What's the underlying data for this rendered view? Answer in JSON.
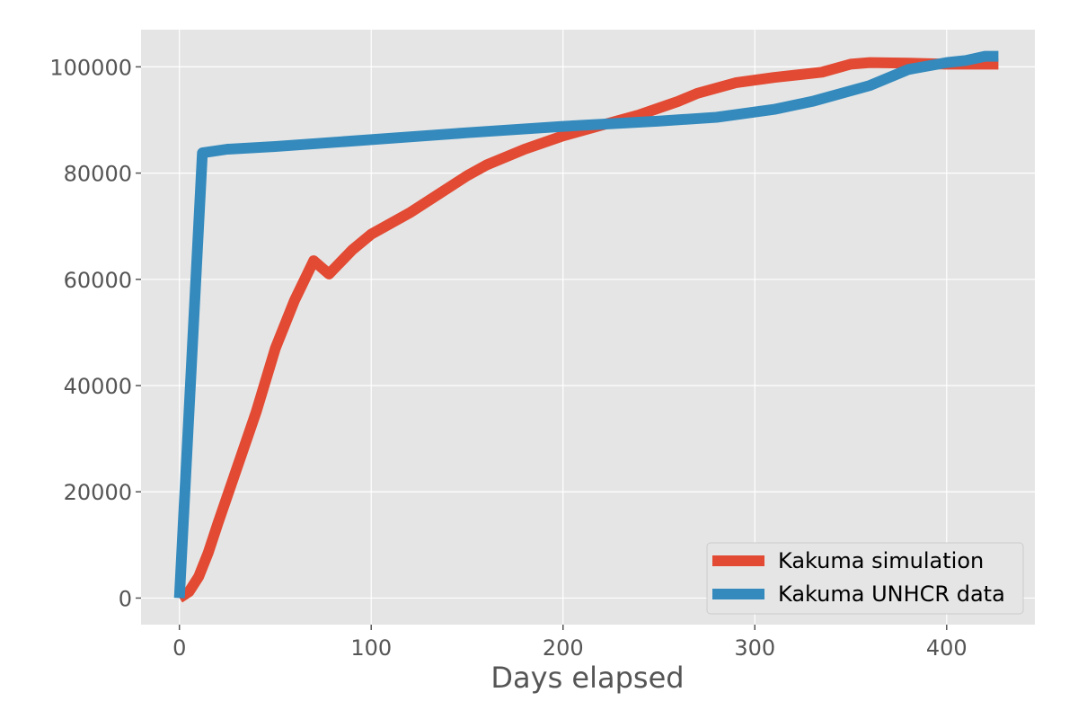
{
  "chart_data": {
    "type": "line",
    "title": "",
    "xlabel": "Days elapsed",
    "ylabel": "",
    "xlim": [
      -20,
      446
    ],
    "ylim": [
      -5000,
      107000
    ],
    "x_ticks": [
      0,
      100,
      200,
      300,
      400
    ],
    "y_ticks": [
      0,
      20000,
      40000,
      60000,
      80000,
      100000
    ],
    "x_tick_labels": [
      "0",
      "100",
      "200",
      "300",
      "400"
    ],
    "y_tick_labels": [
      "0",
      "20000",
      "40000",
      "60000",
      "80000",
      "100000"
    ],
    "grid": true,
    "legend_position": "lower-right",
    "background_color": "#e5e5e5",
    "series": [
      {
        "name": "Kakuma simulation",
        "color": "#e24a33",
        "x": [
          0,
          5,
          10,
          15,
          20,
          30,
          40,
          50,
          60,
          70,
          78,
          90,
          100,
          120,
          135,
          150,
          160,
          180,
          200,
          220,
          240,
          260,
          270,
          290,
          310,
          335,
          350,
          360,
          380,
          400,
          420,
          427
        ],
        "y": [
          0,
          1200,
          4000,
          8500,
          14000,
          24500,
          35000,
          47000,
          56000,
          63500,
          61000,
          65500,
          68500,
          72500,
          76000,
          79500,
          81500,
          84500,
          87000,
          89000,
          91000,
          93500,
          95000,
          97000,
          98000,
          99000,
          100500,
          100800,
          100700,
          100500,
          100500,
          100500
        ]
      },
      {
        "name": "Kakuma UNHCR data",
        "color": "#348abd",
        "x": [
          0,
          12,
          25,
          50,
          100,
          150,
          200,
          250,
          280,
          310,
          330,
          350,
          360,
          380,
          400,
          410,
          420,
          427
        ],
        "y": [
          0,
          83800,
          84500,
          85000,
          86300,
          87600,
          88800,
          89800,
          90500,
          92000,
          93500,
          95500,
          96500,
          99500,
          100800,
          101200,
          102000,
          102000
        ]
      }
    ]
  }
}
